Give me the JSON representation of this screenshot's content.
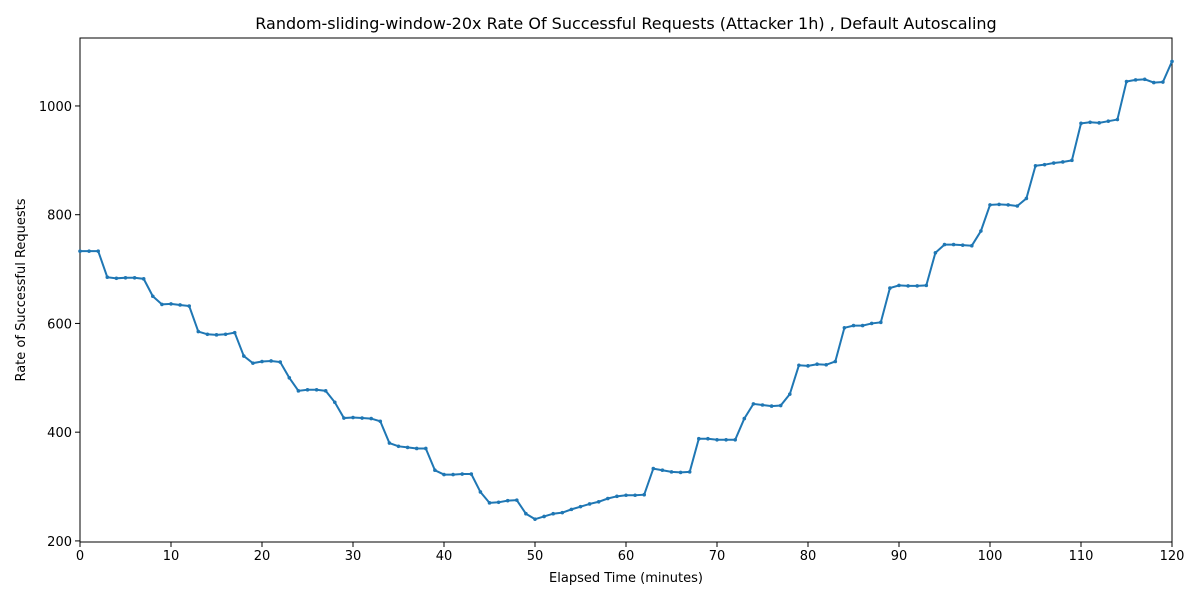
{
  "chart_data": {
    "type": "line",
    "title": "Random-sliding-window-20x Rate Of Successful Requests (Attacker 1h) , Default Autoscaling",
    "xlabel": "Elapsed Time (minutes)",
    "ylabel": "Rate of Successful Requests",
    "x": [
      0,
      1,
      2,
      3,
      4,
      5,
      6,
      7,
      8,
      9,
      10,
      11,
      12,
      13,
      14,
      15,
      16,
      17,
      18,
      19,
      20,
      21,
      22,
      23,
      24,
      25,
      26,
      27,
      28,
      29,
      30,
      31,
      32,
      33,
      34,
      35,
      36,
      37,
      38,
      39,
      40,
      41,
      42,
      43,
      44,
      45,
      46,
      47,
      48,
      49,
      50,
      51,
      52,
      53,
      54,
      55,
      56,
      57,
      58,
      59,
      60,
      61,
      62,
      63,
      64,
      65,
      66,
      67,
      68,
      69,
      70,
      71,
      72,
      73,
      74,
      75,
      76,
      77,
      78,
      79,
      80,
      81,
      82,
      83,
      84,
      85,
      86,
      87,
      88,
      89,
      90,
      91,
      92,
      93,
      94,
      95,
      96,
      97,
      98,
      99,
      100,
      101,
      102,
      103,
      104,
      105,
      106,
      107,
      108,
      109,
      110,
      111,
      112,
      113,
      114,
      115,
      116,
      117,
      118,
      119,
      120
    ],
    "values": [
      733,
      733,
      733,
      685,
      683,
      684,
      684,
      682,
      650,
      635,
      636,
      634,
      632,
      585,
      580,
      579,
      580,
      583,
      540,
      527,
      530,
      531,
      529,
      500,
      476,
      478,
      478,
      476,
      455,
      426,
      427,
      426,
      425,
      420,
      380,
      374,
      372,
      370,
      370,
      330,
      322,
      322,
      323,
      323,
      290,
      270,
      271,
      274,
      275,
      250,
      240,
      245,
      250,
      252,
      258,
      263,
      268,
      272,
      278,
      282,
      284,
      284,
      285,
      333,
      330,
      327,
      326,
      327,
      388,
      388,
      386,
      386,
      386,
      425,
      452,
      450,
      448,
      449,
      470,
      523,
      522,
      525,
      524,
      530,
      592,
      596,
      596,
      600,
      602,
      665,
      670,
      669,
      669,
      670,
      730,
      745,
      745,
      744,
      743,
      770,
      818,
      819,
      818,
      816,
      830,
      890,
      892,
      895,
      897,
      900,
      968,
      970,
      969,
      972,
      975,
      1045,
      1048,
      1049,
      1043,
      1044,
      1082
    ],
    "color": "#1f77b4",
    "xlim": [
      0,
      120
    ],
    "xticks": [
      0,
      10,
      20,
      30,
      40,
      50,
      60,
      70,
      80,
      90,
      100,
      110,
      120
    ],
    "ylim": [
      198,
      1125
    ],
    "yticks": [
      200,
      400,
      600,
      800,
      1000
    ]
  }
}
